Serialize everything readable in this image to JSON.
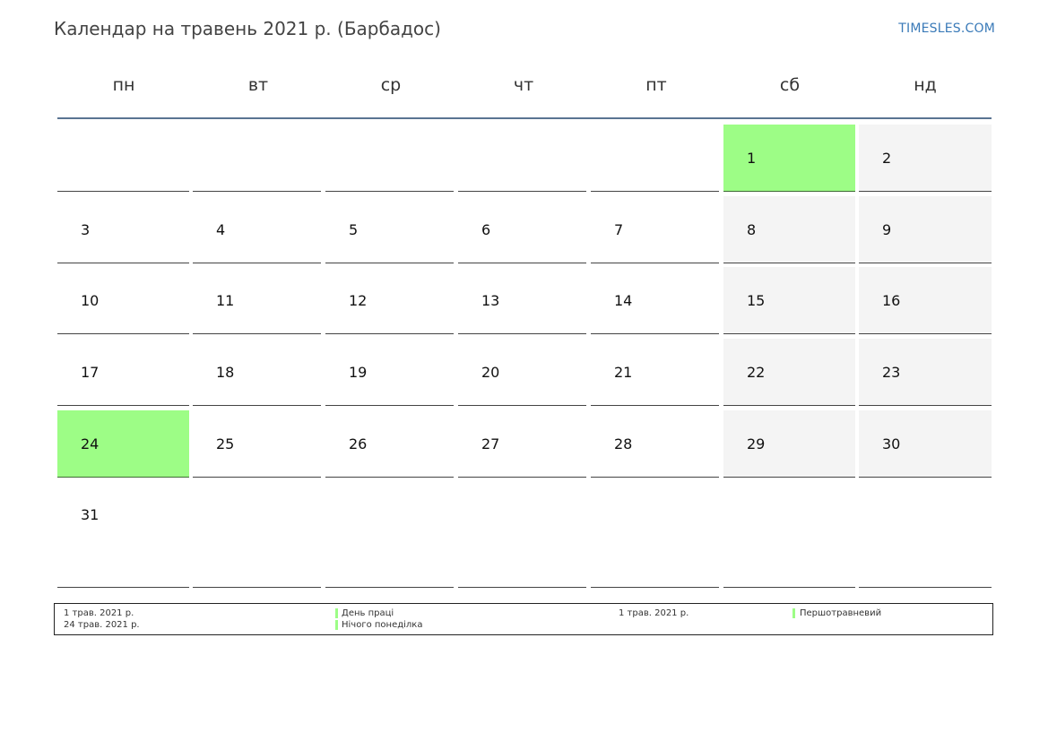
{
  "title": "Календар на травень 2021 р. (Барбадос)",
  "brand": "TIMESLES.COM",
  "weekdays": [
    "пн",
    "вт",
    "ср",
    "чт",
    "пт",
    "сб",
    "нд"
  ],
  "weeks": [
    [
      null,
      null,
      null,
      null,
      null,
      1,
      2
    ],
    [
      3,
      4,
      5,
      6,
      7,
      8,
      9
    ],
    [
      10,
      11,
      12,
      13,
      14,
      15,
      16
    ],
    [
      17,
      18,
      19,
      20,
      21,
      22,
      23
    ],
    [
      24,
      25,
      26,
      27,
      28,
      29,
      30
    ],
    [
      31,
      null,
      null,
      null,
      null,
      null,
      null
    ]
  ],
  "holidays": [
    1,
    24
  ],
  "legend": {
    "public": [
      {
        "date": "1 трав. 2021 р.",
        "name": "День праці"
      },
      {
        "date": "24 трав. 2021 р.",
        "name": "Нічого понеділка"
      }
    ],
    "other": [
      {
        "date": "1 трав. 2021 р.",
        "name": "Першотравневий"
      }
    ]
  },
  "colors": {
    "holiday": "#9dfd86",
    "weekend": "#f4f4f4",
    "header_line": "#5a7492",
    "brand": "#3a7ab8"
  }
}
